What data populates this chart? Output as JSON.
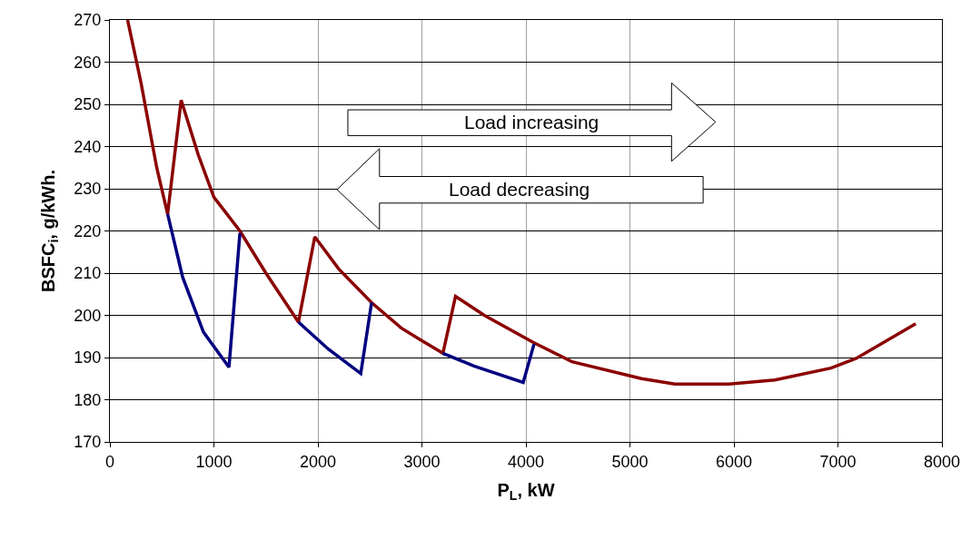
{
  "chart_data": {
    "type": "line",
    "xlabel": "P$_{L}$, kW",
    "ylabel": "BSFC$_{i}$, g/kWh.",
    "xlim": [
      0,
      8000
    ],
    "xticks": [
      0,
      1000,
      2000,
      3000,
      4000,
      5000,
      6000,
      7000,
      8000
    ],
    "ylim": [
      170,
      270
    ],
    "yticks": [
      170,
      180,
      190,
      200,
      210,
      220,
      230,
      240,
      250,
      260,
      270
    ],
    "grid": true,
    "line_style": "solid",
    "marker": "none",
    "annotations": [
      "Load increasing",
      "Load decreasing"
    ],
    "series": [
      {
        "color": "#8b0000",
        "x": [
          170,
          300,
          450,
          555,
          685,
          850,
          1000,
          1250,
          1500,
          1813,
          1970,
          2200,
          2516,
          2800,
          3000,
          3202,
          3323,
          3600,
          4069,
          4443,
          5111,
          5432,
          5952,
          6395,
          6933,
          7176,
          7748
        ],
        "values": [
          270,
          255,
          235,
          224,
          251,
          238,
          228,
          220,
          210,
          198.4,
          218.6,
          211,
          203,
          197,
          194,
          191,
          204.5,
          200,
          193.6,
          189,
          185,
          183.7,
          183.7,
          184.7,
          187.5,
          189.8,
          198
        ]
      },
      {
        "color": "#000080",
        "x": [
          555,
          700,
          900,
          1145,
          1250,
          null,
          1813,
          2100,
          2412,
          2516,
          null,
          3202,
          3500,
          3974,
          4078
        ],
        "values": [
          224,
          209,
          196,
          187.7,
          219.5,
          null,
          198.4,
          192,
          186.2,
          203,
          null,
          191,
          188,
          184.1,
          193.2
        ]
      }
    ]
  }
}
